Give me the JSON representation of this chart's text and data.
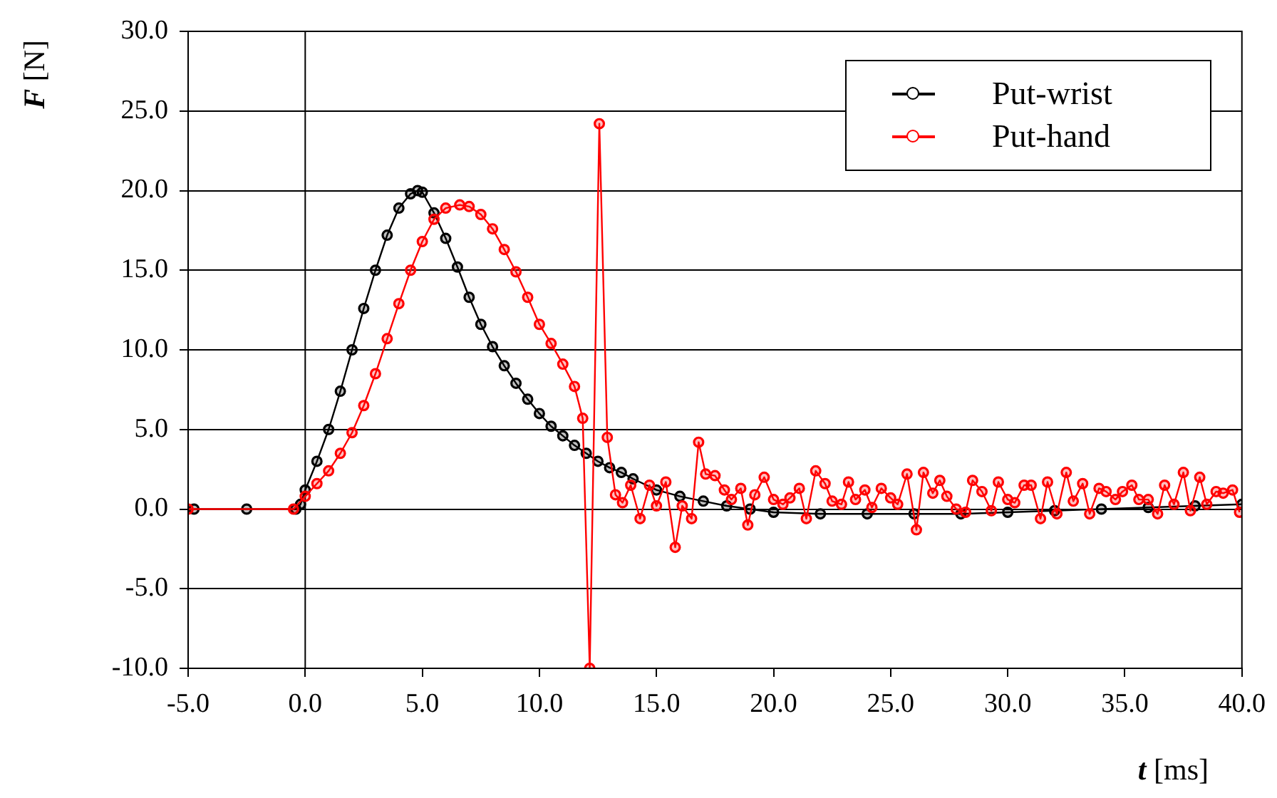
{
  "chart_data": {
    "type": "line",
    "xlabel": "t [ms]",
    "ylabel": "F [N]",
    "xlim": [
      -5,
      40
    ],
    "xticks": [
      {
        "value": -5,
        "label": "-5.0"
      },
      {
        "value": 0,
        "label": "0.0"
      },
      {
        "value": 5,
        "label": "5.0"
      },
      {
        "value": 10,
        "label": "10.0"
      },
      {
        "value": 15,
        "label": "15.0"
      },
      {
        "value": 20,
        "label": "20.0"
      },
      {
        "value": 25,
        "label": "25.0"
      },
      {
        "value": 30,
        "label": "30.0"
      },
      {
        "value": 35,
        "label": "35.0"
      },
      {
        "value": 40,
        "label": "40.0"
      }
    ],
    "ylim": [
      -10,
      30
    ],
    "yticks": [
      {
        "value": -10,
        "label": "-10.0"
      },
      {
        "value": -5,
        "label": "-5.0"
      },
      {
        "value": 0,
        "label": "0.0"
      },
      {
        "value": 5,
        "label": "5.0"
      },
      {
        "value": 10,
        "label": "10.0"
      },
      {
        "value": 15,
        "label": "15.0"
      },
      {
        "value": 20,
        "label": "20.0"
      },
      {
        "value": 25,
        "label": "25.0"
      },
      {
        "value": 30,
        "label": "30.0"
      }
    ],
    "grid": "y",
    "ref_lines": [
      {
        "axis": "x",
        "value": 0,
        "color": "#000000"
      }
    ],
    "legend": "top right",
    "marker": "circle",
    "line_style": "solid",
    "series": [
      {
        "name": "Put-wrist",
        "color": "#000000",
        "x": [
          -4.75,
          -2.5,
          -0.4,
          -0.2,
          0,
          0.5,
          1,
          1.5,
          2,
          2.5,
          3,
          3.5,
          4,
          4.5,
          4.8,
          5,
          5.5,
          6,
          6.5,
          7,
          7.5,
          8,
          8.5,
          9,
          9.5,
          10,
          10.5,
          11,
          11.5,
          12,
          12.5,
          13,
          13.5,
          14,
          15,
          16,
          17,
          18,
          19,
          20,
          22,
          24,
          26,
          28,
          30,
          32,
          34,
          36,
          38,
          40
        ],
        "values": [
          0,
          0,
          0,
          0.3,
          1.2,
          3.0,
          5.0,
          7.4,
          10.0,
          12.6,
          15.0,
          17.2,
          18.9,
          19.8,
          20.0,
          19.9,
          18.6,
          17.0,
          15.2,
          13.3,
          11.6,
          10.2,
          9.0,
          7.9,
          6.9,
          6.0,
          5.2,
          4.6,
          4.0,
          3.5,
          3.0,
          2.6,
          2.3,
          1.9,
          1.2,
          0.8,
          0.5,
          0.2,
          0,
          -0.2,
          -0.3,
          -0.3,
          -0.3,
          -0.3,
          -0.2,
          -0.1,
          0,
          0.1,
          0.2,
          0.3
        ]
      },
      {
        "name": "Put-hand",
        "color": "#ff0000",
        "x": [
          -5,
          -0.5,
          0,
          0.5,
          1,
          1.5,
          2,
          2.5,
          3,
          3.5,
          4,
          4.5,
          5,
          5.5,
          6,
          6.6,
          7,
          7.5,
          8,
          8.5,
          9,
          9.5,
          10,
          10.5,
          11,
          11.5,
          11.85,
          12.15,
          12.56,
          12.9,
          13.25,
          13.55,
          13.9,
          14.3,
          14.7,
          15.0,
          15.4,
          15.8,
          16.1,
          16.5,
          16.8,
          17.1,
          17.5,
          17.9,
          18.2,
          18.6,
          18.9,
          19.2,
          19.6,
          20.0,
          20.4,
          20.7,
          21.1,
          21.4,
          21.8,
          22.2,
          22.5,
          22.9,
          23.2,
          23.5,
          23.9,
          24.2,
          24.6,
          25.0,
          25.3,
          25.7,
          26.1,
          26.4,
          26.8,
          27.1,
          27.4,
          27.8,
          28.2,
          28.5,
          28.9,
          29.3,
          29.6,
          30.0,
          30.3,
          30.7,
          31.0,
          31.4,
          31.7,
          32.1,
          32.5,
          32.8,
          33.2,
          33.5,
          33.9,
          34.2,
          34.6,
          34.9,
          35.3,
          35.6,
          36.0,
          36.4,
          36.7,
          37.1,
          37.5,
          37.8,
          38.2,
          38.5,
          38.9,
          39.2,
          39.6,
          39.9
        ],
        "values": [
          0,
          0,
          0.8,
          1.6,
          2.4,
          3.5,
          4.8,
          6.5,
          8.5,
          10.7,
          12.9,
          15.0,
          16.8,
          18.2,
          18.9,
          19.1,
          19.0,
          18.5,
          17.6,
          16.3,
          14.9,
          13.3,
          11.6,
          10.4,
          9.1,
          7.7,
          5.7,
          -10,
          24.2,
          4.5,
          0.9,
          0.4,
          1.5,
          -0.6,
          1.5,
          0.2,
          1.7,
          -2.4,
          0.2,
          -0.6,
          4.2,
          2.2,
          2.1,
          1.2,
          0.6,
          1.3,
          -1.0,
          0.9,
          2.0,
          0.6,
          0.3,
          0.7,
          1.3,
          -0.6,
          2.4,
          1.6,
          0.5,
          0.3,
          1.7,
          0.6,
          1.2,
          0.1,
          1.3,
          0.7,
          0.3,
          2.2,
          -1.3,
          2.3,
          1.0,
          1.8,
          0.8,
          0.0,
          -0.2,
          1.8,
          1.1,
          -0.1,
          1.7,
          0.6,
          0.4,
          1.5,
          1.5,
          -0.6,
          1.7,
          -0.3,
          2.3,
          0.5,
          1.6,
          -0.3,
          1.3,
          1.1,
          0.6,
          1.1,
          1.5,
          0.6,
          0.6,
          -0.3,
          1.5,
          0.3,
          2.3,
          -0.1,
          2.0,
          0.3,
          1.1,
          1.0,
          1.2,
          -0.2
        ]
      }
    ]
  }
}
